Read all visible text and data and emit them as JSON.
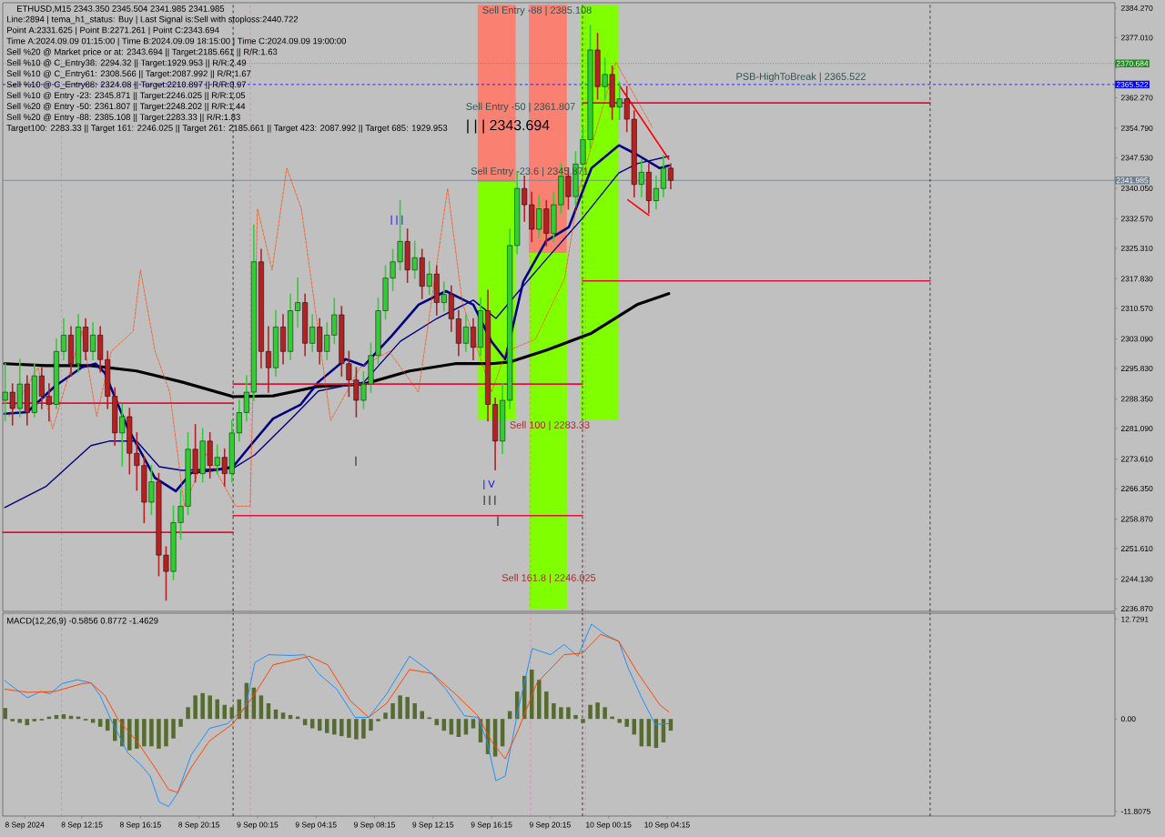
{
  "chart_data": [
    {
      "type": "candlestick",
      "title": "ETHUSD,M15  2343.350 2345.504 2341.985 2341.985",
      "annotations": [
        "Line:2894 | tema_h1_status: Buy | Last Signal is:Sell with stoploss:2440.722",
        "Point A:2331.625 | Point B:2271.261 | Point C:2343.694",
        "Time A:2024.09.09 01:15:00 | Time B:2024.09.09 18:15:00 | Time C:2024.09.09 19:00:00",
        "Sell %20 @ Market price or at: 2343.694 || Target:2185.661 || R/R:1.63",
        "Sell %10 @ C_Entry38: 2294.32 || Target:1929.953 || R/R:2.49",
        "Sell %10 @ C_Entry61: 2308.566 || Target:2087.992 || R/R:1.67",
        "Sell %10 @ C_Entry88: 2324.08 || Target:2210.897 || R/R:0.97",
        "Sell %10 @ Entry -23: 2345.871 || Target:2246.025 || R/R:1.05",
        "Sell %20 @ Entry -50: 2361.807 || Target:2248.202 || R/R:1.44",
        "Sell %20 @ Entry -88: 2385.108 || Target:2283.33 || R/R:1.83",
        "Target100: 2283.33 || Target 161: 2246.025 || Target 261: 2185.661 || Target 423: 2087.992 || Target 685: 1929.953",
        "Sell Entry -88 | 2385.108",
        "Sell Entry -50 | 2361.807",
        "| | | 2343.694",
        "Sell Entry -23.6 | 2345.871",
        "Sell 100 | 2283.33",
        "Sell 161.8 | 2246.025",
        "| | |",
        "| V",
        "| | |",
        "|",
        "|",
        "PSB-HighToBreak | 2365.522"
      ],
      "x": [
        "2024-09-08T07:00",
        "2024-09-08T07:30",
        "2024-09-08T08:00",
        "2024-09-08T08:30",
        "2024-09-08T09:00",
        "2024-09-08T09:30",
        "2024-09-08T10:00",
        "2024-09-08T10:30",
        "2024-09-08T11:00",
        "2024-09-08T11:30",
        "2024-09-08T12:00",
        "2024-09-08T12:30",
        "2024-09-08T13:00",
        "2024-09-08T13:30",
        "2024-09-08T14:00",
        "2024-09-08T14:30",
        "2024-09-08T15:00",
        "2024-09-08T15:30",
        "2024-09-08T16:00",
        "2024-09-08T16:30",
        "2024-09-08T17:00",
        "2024-09-08T17:30",
        "2024-09-08T18:00",
        "2024-09-08T18:30",
        "2024-09-08T19:00",
        "2024-09-08T19:30",
        "2024-09-08T20:00",
        "2024-09-08T20:30",
        "2024-09-08T21:00",
        "2024-09-08T21:30",
        "2024-09-08T22:00",
        "2024-09-08T22:30",
        "2024-09-08T23:00",
        "2024-09-08T23:30",
        "2024-09-09T00:00",
        "2024-09-09T00:30",
        "2024-09-09T01:00",
        "2024-09-09T01:30",
        "2024-09-09T02:00",
        "2024-09-09T02:30",
        "2024-09-09T03:00",
        "2024-09-09T03:30",
        "2024-09-09T04:00",
        "2024-09-09T04:30",
        "2024-09-09T05:00",
        "2024-09-09T05:30",
        "2024-09-09T06:00",
        "2024-09-09T06:30",
        "2024-09-09T07:00",
        "2024-09-09T07:30",
        "2024-09-09T08:00",
        "2024-09-09T08:30",
        "2024-09-09T09:00",
        "2024-09-09T09:30",
        "2024-09-09T10:00",
        "2024-09-09T10:30",
        "2024-09-09T11:00",
        "2024-09-09T11:30",
        "2024-09-09T12:00",
        "2024-09-09T12:30",
        "2024-09-09T13:00",
        "2024-09-09T13:30",
        "2024-09-09T14:00",
        "2024-09-09T14:30",
        "2024-09-09T15:00",
        "2024-09-09T15:30",
        "2024-09-09T16:00",
        "2024-09-09T16:30",
        "2024-09-09T17:00",
        "2024-09-09T17:30",
        "2024-09-09T18:00",
        "2024-09-09T18:30",
        "2024-09-09T19:00",
        "2024-09-09T19:30",
        "2024-09-09T20:00",
        "2024-09-09T20:30",
        "2024-09-09T21:00",
        "2024-09-09T21:30",
        "2024-09-09T22:00",
        "2024-09-09T22:30",
        "2024-09-09T23:00",
        "2024-09-09T23:30",
        "2024-09-10T00:00",
        "2024-09-10T00:30",
        "2024-09-10T01:00",
        "2024-09-10T01:30",
        "2024-09-10T02:00",
        "2024-09-10T02:30",
        "2024-09-10T03:00",
        "2024-09-10T03:30",
        "2024-09-10T04:00",
        "2024-09-10T04:30"
      ],
      "ohlc": [
        [
          2288,
          2297,
          2283,
          2290
        ],
        [
          2290,
          2292,
          2282,
          2286
        ],
        [
          2286,
          2298,
          2284,
          2292
        ],
        [
          2292,
          2294,
          2282,
          2285
        ],
        [
          2285,
          2297,
          2284,
          2294
        ],
        [
          2294,
          2296,
          2286,
          2289
        ],
        [
          2289,
          2292,
          2283,
          2287
        ],
        [
          2287,
          2303,
          2286,
          2300
        ],
        [
          2300,
          2308,
          2298,
          2304
        ],
        [
          2304,
          2306,
          2294,
          2297
        ],
        [
          2297,
          2309,
          2295,
          2306
        ],
        [
          2306,
          2308,
          2298,
          2300
        ],
        [
          2300,
          2307,
          2298,
          2304
        ],
        [
          2304,
          2306,
          2295,
          2298
        ],
        [
          2298,
          2300,
          2286,
          2289
        ],
        [
          2289,
          2291,
          2277,
          2280
        ],
        [
          2280,
          2287,
          2272,
          2284
        ],
        [
          2284,
          2286,
          2270,
          2275
        ],
        [
          2275,
          2280,
          2266,
          2272
        ],
        [
          2272,
          2274,
          2258,
          2263
        ],
        [
          2263,
          2272,
          2260,
          2268
        ],
        [
          2268,
          2270,
          2245,
          2250
        ],
        [
          2250,
          2252,
          2239,
          2246
        ],
        [
          2246,
          2262,
          2244,
          2258
        ],
        [
          2258,
          2266,
          2254,
          2262
        ],
        [
          2262,
          2280,
          2260,
          2276
        ],
        [
          2276,
          2282,
          2268,
          2270
        ],
        [
          2270,
          2281,
          2268,
          2278
        ],
        [
          2278,
          2280,
          2269,
          2272
        ],
        [
          2272,
          2277,
          2270,
          2274
        ],
        [
          2274,
          2276,
          2267,
          2270
        ],
        [
          2270,
          2283,
          2268,
          2280
        ],
        [
          2280,
          2288,
          2278,
          2285
        ],
        [
          2285,
          2294,
          2283,
          2290
        ],
        [
          2290,
          2331,
          2288,
          2322
        ],
        [
          2322,
          2325,
          2296,
          2300
        ],
        [
          2300,
          2306,
          2290,
          2296
        ],
        [
          2296,
          2310,
          2294,
          2306
        ],
        [
          2306,
          2309,
          2297,
          2300
        ],
        [
          2300,
          2314,
          2298,
          2310
        ],
        [
          2310,
          2318,
          2306,
          2312
        ],
        [
          2312,
          2314,
          2299,
          2302
        ],
        [
          2302,
          2309,
          2300,
          2306
        ],
        [
          2306,
          2308,
          2297,
          2300
        ],
        [
          2300,
          2307,
          2298,
          2304
        ],
        [
          2304,
          2313,
          2302,
          2309
        ],
        [
          2309,
          2311,
          2294,
          2297
        ],
        [
          2297,
          2300,
          2289,
          2293
        ],
        [
          2293,
          2296,
          2284,
          2288
        ],
        [
          2288,
          2295,
          2286,
          2292
        ],
        [
          2292,
          2302,
          2290,
          2299
        ],
        [
          2299,
          2313,
          2297,
          2310
        ],
        [
          2310,
          2321,
          2308,
          2318
        ],
        [
          2318,
          2325,
          2315,
          2322
        ],
        [
          2322,
          2337,
          2320,
          2327
        ],
        [
          2327,
          2330,
          2317,
          2320
        ],
        [
          2320,
          2327,
          2318,
          2323
        ],
        [
          2323,
          2325,
          2313,
          2316
        ],
        [
          2316,
          2322,
          2314,
          2319
        ],
        [
          2319,
          2321,
          2309,
          2312
        ],
        [
          2312,
          2317,
          2310,
          2314
        ],
        [
          2314,
          2316,
          2305,
          2308
        ],
        [
          2308,
          2310,
          2299,
          2302
        ],
        [
          2302,
          2309,
          2300,
          2306
        ],
        [
          2306,
          2308,
          2298,
          2301
        ],
        [
          2301,
          2313,
          2299,
          2310
        ],
        [
          2310,
          2315,
          2283,
          2287
        ],
        [
          2287,
          2288.5,
          2271,
          2278
        ],
        [
          2278,
          2292,
          2275,
          2288
        ],
        [
          2288,
          2330,
          2286,
          2326
        ],
        [
          2326,
          2344,
          2324,
          2340
        ],
        [
          2340,
          2343,
          2332,
          2336
        ],
        [
          2336,
          2339,
          2327,
          2330
        ],
        [
          2330,
          2338,
          2328,
          2335
        ],
        [
          2335,
          2337,
          2326,
          2329
        ],
        [
          2329,
          2339,
          2327,
          2336
        ],
        [
          2336,
          2346,
          2334,
          2343
        ],
        [
          2343,
          2345,
          2335,
          2338
        ],
        [
          2338,
          2349,
          2336,
          2346
        ],
        [
          2346,
          2355,
          2344,
          2352
        ],
        [
          2352,
          2380,
          2350,
          2374
        ],
        [
          2374,
          2378,
          2362,
          2365
        ],
        [
          2365,
          2372,
          2362,
          2368
        ],
        [
          2368,
          2370,
          2357,
          2360
        ],
        [
          2360,
          2366,
          2357,
          2362
        ],
        [
          2362,
          2365,
          2354,
          2357
        ],
        [
          2357,
          2359,
          2338,
          2341
        ],
        [
          2341,
          2347,
          2338,
          2344
        ],
        [
          2344,
          2346,
          2334,
          2337
        ],
        [
          2337,
          2343,
          2335,
          2340
        ],
        [
          2340,
          2348,
          2338,
          2345
        ],
        [
          2345,
          2346,
          2340,
          2341.985
        ]
      ],
      "series": [
        {
          "type": "bar",
          "color": "#7fff00",
          "x": [
            "2024-09-09T16:36",
            "2024-09-09T20:06",
            "2024-09-09T23:39"
          ],
          "base": [
            2283.1,
            2236.87,
            2283.1
          ],
          "values": [
            58.5,
            87.3,
            102.0
          ]
        },
        {
          "type": "bar",
          "color": "#fa8072",
          "x": [
            "2024-09-09T16:36",
            "2024-09-09T20:06"
          ],
          "base": [
            2341.6,
            2324.2
          ],
          "values": [
            43.5,
            60.9
          ]
        },
        {
          "type": "line",
          "color": "#000000",
          "x": [
            "2024-09-08T06:58",
            "2024-09-08T09:46",
            "2024-09-08T12:52",
            "2024-09-08T15:59",
            "2024-09-08T19:05",
            "2024-09-08T22:35",
            "2024-09-09T01:19",
            "2024-09-09T04:25",
            "2024-09-09T07:32",
            "2024-09-09T10:39",
            "2024-09-09T13:46",
            "2024-09-09T16:14",
            "2024-09-09T17:29",
            "2024-09-09T19:59",
            "2024-09-09T23:05",
            "2024-09-10T02:12",
            "2024-09-10T04:22"
          ],
          "values": [
            2297.0,
            2296.5,
            2296.5,
            2295.2,
            2292.5,
            2288.9,
            2289.1,
            2291.4,
            2292.0,
            2295.2,
            2297.0,
            2297.0,
            2297.4,
            2300.3,
            2304.5,
            2311.5,
            2314.2
          ]
        },
        {
          "type": "line",
          "color": "#000080",
          "x": [
            "2024-09-08T06:58",
            "2024-09-08T08:31",
            "2024-09-08T10:23",
            "2024-09-08T12:15",
            "2024-09-08T13:11",
            "2024-09-08T13:49",
            "2024-09-08T15:22",
            "2024-09-08T17:14",
            "2024-09-08T18:40",
            "2024-09-08T19:43",
            "2024-09-08T21:35",
            "2024-09-08T22:35",
            "2024-09-08T23:46",
            "2024-09-09T01:19",
            "2024-09-09T03:11",
            "2024-09-09T04:25",
            "2024-09-09T06:17",
            "2024-09-09T07:32",
            "2024-09-09T09:24",
            "2024-09-09T11:16",
            "2024-09-09T13:08",
            "2024-09-09T15:00",
            "2024-09-09T16:14",
            "2024-09-09T17:11",
            "2024-09-09T18:25",
            "2024-09-09T19:59",
            "2024-09-09T21:32",
            "2024-09-09T23:05",
            "2024-09-10T00:57",
            "2024-09-10T02:12",
            "2024-09-10T03:45",
            "2024-09-10T04:22"
          ],
          "values": [
            2284.7,
            2285.1,
            2291.4,
            2296.1,
            2297.0,
            2294.7,
            2281.3,
            2269.0,
            2265.7,
            2270.2,
            2271.0,
            2271.7,
            2276.9,
            2283.5,
            2286.9,
            2292.5,
            2298.1,
            2296.5,
            2303.7,
            2311.5,
            2314.8,
            2311.5,
            2302.5,
            2298.1,
            2317.1,
            2327.1,
            2330.5,
            2345.0,
            2350.6,
            2348.3,
            2345.0,
            2345.6
          ]
        },
        {
          "type": "line",
          "color": "#000080",
          "x": [
            "2024-09-08T06:58",
            "2024-09-08T09:46",
            "2024-09-08T12:52",
            "2024-09-08T14:07",
            "2024-09-08T15:59",
            "2024-09-08T17:32",
            "2024-09-08T19:05",
            "2024-09-08T22:35",
            "2024-09-09T00:04",
            "2024-09-09T02:34",
            "2024-09-09T04:25",
            "2024-09-09T07:32",
            "2024-09-09T10:01",
            "2024-09-09T12:31",
            "2024-09-09T15:00",
            "2024-09-09T16:33",
            "2024-09-09T18:07",
            "2024-09-09T19:59",
            "2024-09-09T22:28",
            "2024-09-10T00:57",
            "2024-09-10T02:12",
            "2024-09-10T04:22"
          ],
          "values": [
            2261.7,
            2266.8,
            2276.9,
            2278.0,
            2278.0,
            2271.7,
            2270.8,
            2271.3,
            2274.6,
            2283.5,
            2290.3,
            2292.5,
            2302.5,
            2308.1,
            2312.6,
            2308.1,
            2314.8,
            2322.6,
            2332.7,
            2343.8,
            2346.1,
            2347.9
          ]
        },
        {
          "type": "line",
          "color": "#ff4500",
          "line_style": "dashed",
          "x": [
            "2024-09-08T07:15",
            "2024-09-08T09:15",
            "2024-09-08T10:15",
            "2024-09-08T12:15",
            "2024-09-08T13:15",
            "2024-09-08T14:15",
            "2024-09-08T15:45",
            "2024-09-08T16:15",
            "2024-09-08T17:15",
            "2024-09-08T18:15",
            "2024-09-08T19:15",
            "2024-09-08T20:45",
            "2024-09-08T22:45",
            "2024-09-08T23:45",
            "2024-09-09T00:15",
            "2024-09-09T01:15",
            "2024-09-09T02:15",
            "2024-09-09T03:15",
            "2024-09-09T05:15",
            "2024-09-09T07:15",
            "2024-09-09T09:15",
            "2024-09-09T11:15",
            "2024-09-09T13:15",
            "2024-09-09T14:15",
            "2024-09-09T16:15",
            "2024-09-09T17:15",
            "2024-09-09T19:15",
            "2024-09-09T20:15",
            "2024-09-09T21:15",
            "2024-09-09T22:15",
            "2024-09-10T00:45",
            "2024-09-10T03:15"
          ],
          "values": [
            2284,
            2296,
            2281,
            2305,
            2284,
            2300,
            2305,
            2320,
            2300,
            2290,
            2262,
            2275,
            2262,
            2262,
            2335,
            2320,
            2345,
            2335,
            2283,
            2296,
            2300,
            2290,
            2340,
            2312,
            2290,
            2300,
            2303,
            null,
            2318,
            2340,
            2371,
            2355
          ]
        },
        {
          "type": "line",
          "color": "#dc143c",
          "x": [
            "2024-09-08T06:50",
            "2024-09-08T22:35"
          ],
          "values": [
            2287.3,
            2287.3
          ]
        },
        {
          "type": "line",
          "color": "#dc143c",
          "x": [
            "2024-09-08T06:50",
            "2024-09-08T22:35"
          ],
          "values": [
            2255.6,
            2255.6
          ]
        },
        {
          "type": "line",
          "color": "#dc143c",
          "x": [
            "2024-09-08T22:35",
            "2024-09-09T22:28"
          ],
          "values": [
            2292.0,
            2292.0
          ]
        },
        {
          "type": "line",
          "color": "#dc143c",
          "x": [
            "2024-09-08T22:35",
            "2024-09-09T22:28"
          ],
          "values": [
            2259.7,
            2259.7
          ]
        },
        {
          "type": "line",
          "color": "#dc143c",
          "x": [
            "2024-09-09T22:28",
            "2024-09-10T22:14"
          ],
          "values": [
            2361.0,
            2361.0
          ]
        },
        {
          "type": "line",
          "color": "#dc143c",
          "x": [
            "2024-09-09T22:28",
            "2024-09-10T22:14"
          ],
          "values": [
            2317.3,
            2317.3
          ]
        },
        {
          "type": "line",
          "color": "#ff0000",
          "x": [
            "2024-09-10T00:57",
            "2024-09-10T04:22"
          ],
          "values": [
            2365.5,
            2347.2
          ]
        },
        {
          "type": "line",
          "color": "#ff0000",
          "x": [
            "2024-09-10T01:34",
            "2024-09-10T03:00"
          ],
          "values": [
            2337.2,
            2333.4
          ]
        }
      ],
      "ref_lines": [
        {
          "axis": "y",
          "value": 2370.684,
          "label": "2370.684",
          "color": "#228b22",
          "line_style": "dotted"
        },
        {
          "axis": "y",
          "value": 2365.522,
          "label": "2365.522",
          "color": "#0000ff",
          "line_style": "dashed"
        },
        {
          "axis": "y",
          "value": 2341.985,
          "label": "2341.985",
          "color": "#708090",
          "line_style": "solid"
        },
        {
          "axis": "x",
          "value": "2024-09-08T22:35",
          "color": "#000000",
          "line_style": "dashed"
        },
        {
          "axis": "x",
          "value": "2024-09-09T22:28",
          "color": "#000000",
          "line_style": "dashed"
        },
        {
          "axis": "x",
          "value": "2024-09-10T22:14",
          "color": "#000000",
          "line_style": "dashed"
        },
        {
          "axis": "x",
          "value": "2024-09-08T10:51",
          "color": "#ff69b4",
          "line_style": "dashed"
        },
        {
          "axis": "x",
          "value": "2024-09-08T23:46",
          "color": "#ff69b4",
          "line_style": "dashed"
        },
        {
          "axis": "x",
          "value": "2024-09-09T18:55",
          "color": "#ff69b4",
          "line_style": "dashed"
        },
        {
          "axis": "x",
          "value": "2024-09-09T22:40",
          "color": "#ff69b4",
          "line_style": "dashed"
        }
      ],
      "xlim": [
        "2024-09-08T06:50",
        "2024-09-11T10:52"
      ],
      "ylim": [
        2236.2,
        2385.6
      ],
      "yticks": [
        {
          "value": 2384.27,
          "label": "2384.270"
        },
        {
          "value": 2377.01,
          "label": "2377.010"
        },
        {
          "value": 2369.53,
          "label": null
        },
        {
          "value": 2362.27,
          "label": "2362.270"
        },
        {
          "value": 2354.79,
          "label": "2354.790"
        },
        {
          "value": 2347.53,
          "label": "2347.530"
        },
        {
          "value": 2340.05,
          "label": "2340.050"
        },
        {
          "value": 2332.57,
          "label": "2332.570"
        },
        {
          "value": 2325.31,
          "label": "2325.310"
        },
        {
          "value": 2317.83,
          "label": "2317.830"
        },
        {
          "value": 2310.57,
          "label": "2310.570"
        },
        {
          "value": 2303.09,
          "label": "2303.090"
        },
        {
          "value": 2295.83,
          "label": "2295.830"
        },
        {
          "value": 2288.35,
          "label": "2288.350"
        },
        {
          "value": 2281.09,
          "label": "2281.090"
        },
        {
          "value": 2273.61,
          "label": "2273.610"
        },
        {
          "value": 2266.35,
          "label": "2266.350"
        },
        {
          "value": 2258.87,
          "label": "2258.870"
        },
        {
          "value": 2251.61,
          "label": "2251.610"
        },
        {
          "value": 2244.13,
          "label": "2244.130"
        },
        {
          "value": 2236.87,
          "label": "2236.870"
        }
      ],
      "tick_labels": "y"
    },
    {
      "type": "bar",
      "title": "MACD(12,26,9) -0.5856 0.8772 -1.4629",
      "x": [
        "2024-09-08T07:00",
        "2024-09-08T07:30",
        "2024-09-08T08:00",
        "2024-09-08T08:30",
        "2024-09-08T09:00",
        "2024-09-08T09:30",
        "2024-09-08T10:00",
        "2024-09-08T10:30",
        "2024-09-08T11:00",
        "2024-09-08T11:30",
        "2024-09-08T12:00",
        "2024-09-08T12:30",
        "2024-09-08T13:00",
        "2024-09-08T13:30",
        "2024-09-08T14:00",
        "2024-09-08T14:30",
        "2024-09-08T15:00",
        "2024-09-08T15:30",
        "2024-09-08T16:00",
        "2024-09-08T16:30",
        "2024-09-08T17:00",
        "2024-09-08T17:30",
        "2024-09-08T18:00",
        "2024-09-08T18:30",
        "2024-09-08T19:00",
        "2024-09-08T19:30",
        "2024-09-08T20:00",
        "2024-09-08T20:30",
        "2024-09-08T21:00",
        "2024-09-08T21:30",
        "2024-09-08T22:00",
        "2024-09-08T22:30",
        "2024-09-08T23:00",
        "2024-09-08T23:30",
        "2024-09-09T00:00",
        "2024-09-09T00:30",
        "2024-09-09T01:00",
        "2024-09-09T01:30",
        "2024-09-09T02:00",
        "2024-09-09T02:30",
        "2024-09-09T03:00",
        "2024-09-09T03:30",
        "2024-09-09T04:00",
        "2024-09-09T04:30",
        "2024-09-09T05:00",
        "2024-09-09T05:30",
        "2024-09-09T06:00",
        "2024-09-09T06:30",
        "2024-09-09T07:00",
        "2024-09-09T07:30",
        "2024-09-09T08:00",
        "2024-09-09T08:30",
        "2024-09-09T09:00",
        "2024-09-09T09:30",
        "2024-09-09T10:00",
        "2024-09-09T10:30",
        "2024-09-09T11:00",
        "2024-09-09T11:30",
        "2024-09-09T12:00",
        "2024-09-09T12:30",
        "2024-09-09T13:00",
        "2024-09-09T13:30",
        "2024-09-09T14:00",
        "2024-09-09T14:30",
        "2024-09-09T15:00",
        "2024-09-09T15:30",
        "2024-09-09T16:00",
        "2024-09-09T16:30",
        "2024-09-09T17:00",
        "2024-09-09T17:30",
        "2024-09-09T18:00",
        "2024-09-09T18:30",
        "2024-09-09T19:00",
        "2024-09-09T19:30",
        "2024-09-09T20:00",
        "2024-09-09T20:30",
        "2024-09-09T21:00",
        "2024-09-09T21:30",
        "2024-09-09T22:00",
        "2024-09-09T22:30",
        "2024-09-09T23:00",
        "2024-09-09T23:30",
        "2024-09-10T00:00",
        "2024-09-10T00:30",
        "2024-09-10T01:00",
        "2024-09-10T01:30",
        "2024-09-10T02:00",
        "2024-09-10T02:30",
        "2024-09-10T03:00",
        "2024-09-10T03:30",
        "2024-09-10T04:00",
        "2024-09-10T04:30"
      ],
      "series": [
        {
          "type": "bar",
          "color": "#556b2f",
          "values": [
            1.4,
            -0.3,
            -0.5,
            -0.8,
            -0.3,
            -0.2,
            0.3,
            0.5,
            0.6,
            0.4,
            0.3,
            -0.2,
            -0.5,
            -1.0,
            -1.5,
            -2.8,
            -3.5,
            -4.0,
            -3.8,
            -3.5,
            -3.5,
            -3.8,
            -3.5,
            -2.5,
            -1.0,
            1.5,
            3.0,
            3.3,
            3.0,
            2.5,
            1.8,
            1.5,
            2.5,
            4.6,
            4.0,
            3.0,
            2.0,
            1.2,
            0.8,
            0.5,
            0.3,
            -0.8,
            -1.2,
            -1.5,
            -1.8,
            -2.0,
            -2.2,
            -2.4,
            -2.6,
            -2.5,
            -1.5,
            -0.3,
            0.8,
            2.0,
            3.0,
            2.8,
            2.0,
            1.0,
            0.2,
            -0.8,
            -1.5,
            -2.0,
            -2.3,
            -2.0,
            -1.2,
            -3.0,
            -4.5,
            -4.8,
            -3.5,
            1.0,
            3.5,
            5.5,
            6.3,
            5.0,
            3.5,
            2.0,
            1.5,
            1.5,
            0.5,
            -0.5,
            1.8,
            2.1,
            1.5,
            0.3,
            -0.5,
            -1.0,
            -2.0,
            -3.5,
            -3.5,
            -3.7,
            -3.0,
            -1.5
          ]
        },
        {
          "type": "line",
          "color": "#1e90ff",
          "x": [
            "2024-09-08T06:58",
            "2024-09-08T08:31",
            "2024-09-08T09:27",
            "2024-09-08T10:04",
            "2024-09-08T10:53",
            "2024-09-08T11:56",
            "2024-09-08T12:52",
            "2024-09-08T13:29",
            "2024-09-08T14:14",
            "2024-09-08T15:22",
            "2024-09-08T16:17",
            "2024-09-08T16:55",
            "2024-09-08T17:32",
            "2024-09-08T18:10",
            "2024-09-08T18:47",
            "2024-09-08T19:43",
            "2024-09-08T20:58",
            "2024-09-08T22:12",
            "2024-09-08T23:27",
            "2024-09-09T00:04",
            "2024-09-09T01:00",
            "2024-09-09T02:34",
            "2024-09-09T03:29",
            "2024-09-09T04:25",
            "2024-09-09T05:40",
            "2024-09-09T06:55",
            "2024-09-09T07:51",
            "2024-09-09T09:05",
            "2024-09-09T10:39",
            "2024-09-09T11:53",
            "2024-09-09T13:08",
            "2024-09-09T14:23",
            "2024-09-09T15:19",
            "2024-09-09T15:56",
            "2024-09-09T16:33",
            "2024-09-09T17:11",
            "2024-09-09T18:07",
            "2024-09-09T19:02",
            "2024-09-09T20:17",
            "2024-09-09T21:13",
            "2024-09-09T22:09",
            "2024-09-09T23:05",
            "2024-09-10T00:01",
            "2024-09-10T00:57",
            "2024-09-10T01:34",
            "2024-09-10T02:31",
            "2024-09-10T03:26",
            "2024-09-10T04:22"
          ],
          "values": [
            4.9,
            2.7,
            3.5,
            3.2,
            4.5,
            5.0,
            4.6,
            3.0,
            -0.1,
            -4.3,
            -5.9,
            -7.3,
            -10.6,
            -11.2,
            -9.5,
            -4.6,
            -1.2,
            -0.6,
            1.6,
            7.2,
            8.2,
            8.1,
            8.2,
            5.8,
            3.8,
            0.2,
            0.2,
            3.2,
            8.0,
            6.3,
            3.8,
            0.4,
            0.2,
            -2.8,
            -7.9,
            -7.3,
            1.6,
            9.0,
            8.2,
            9.5,
            8.0,
            12.1,
            10.8,
            9.9,
            6.6,
            2.7,
            -0.7,
            -0.6
          ]
        },
        {
          "type": "line",
          "color": "#ff4500",
          "x": [
            "2024-09-08T06:58",
            "2024-09-08T08:31",
            "2024-09-08T10:23",
            "2024-09-08T12:15",
            "2024-09-08T12:52",
            "2024-09-08T13:49",
            "2024-09-08T14:44",
            "2024-09-08T15:59",
            "2024-09-08T17:14",
            "2024-09-08T18:10",
            "2024-09-08T18:47",
            "2024-09-08T19:43",
            "2024-09-08T20:58",
            "2024-09-08T22:35",
            "2024-09-09T00:04",
            "2024-09-09T01:19",
            "2024-09-09T03:48",
            "2024-09-09T05:03",
            "2024-09-09T06:36",
            "2024-09-09T07:51",
            "2024-09-09T09:05",
            "2024-09-09T10:39",
            "2024-09-09T12:12",
            "2024-09-09T13:46",
            "2024-09-09T15:19",
            "2024-09-09T16:14",
            "2024-09-09T17:11",
            "2024-09-09T18:07",
            "2024-09-09T19:21",
            "2024-09-09T21:13",
            "2024-09-09T22:28",
            "2024-09-09T23:43",
            "2024-09-10T00:57",
            "2024-09-10T02:12",
            "2024-09-10T03:45",
            "2024-09-10T04:22"
          ],
          "values": [
            3.8,
            3.4,
            3.5,
            4.5,
            4.6,
            3.0,
            -0.1,
            -2.8,
            -6.2,
            -9.0,
            -9.4,
            -6.2,
            -2.8,
            -0.6,
            3.2,
            6.9,
            8.0,
            6.9,
            2.3,
            0.2,
            2.0,
            6.3,
            5.8,
            3.2,
            0.4,
            -2.8,
            -5.1,
            -1.2,
            4.6,
            8.2,
            8.4,
            10.8,
            9.9,
            6.0,
            1.8,
            0.9
          ]
        }
      ],
      "ref_lines": [
        {
          "axis": "x",
          "value": "2024-09-08T22:35",
          "color": "#000000",
          "line_style": "dashed"
        },
        {
          "axis": "x",
          "value": "2024-09-09T22:28",
          "color": "#000000",
          "line_style": "dashed"
        },
        {
          "axis": "x",
          "value": "2024-09-10T22:14",
          "color": "#000000",
          "line_style": "dashed"
        },
        {
          "axis": "x",
          "value": "2024-09-08T10:51",
          "color": "#ff69b4",
          "line_style": "dashed"
        },
        {
          "axis": "x",
          "value": "2024-09-08T23:46",
          "color": "#ff69b4",
          "line_style": "dashed"
        },
        {
          "axis": "x",
          "value": "2024-09-09T18:55",
          "color": "#ff69b4",
          "line_style": "dashed"
        },
        {
          "axis": "x",
          "value": "2024-09-09T22:40",
          "color": "#ff69b4",
          "line_style": "dashed"
        }
      ],
      "xlim": [
        "2024-09-08T06:50",
        "2024-09-11T10:52"
      ],
      "ylim": [
        -12.4,
        13.5
      ],
      "yticks": [
        {
          "value": 12.7291,
          "label": "12.7291"
        },
        {
          "value": 0,
          "label": "0.00"
        },
        {
          "value": -11.8075,
          "label": "-11.8075"
        }
      ],
      "xticks": [
        {
          "value": "2024-09-08T08:20",
          "label": "8 Sep 2024"
        },
        {
          "value": "2024-09-08T12:15",
          "label": "8 Sep 12:15"
        },
        {
          "value": "2024-09-08T16:15",
          "label": "8 Sep 16:15"
        },
        {
          "value": "2024-09-08T20:15",
          "label": "8 Sep 20:15"
        },
        {
          "value": "2024-09-09T00:15",
          "label": "9 Sep 00:15"
        },
        {
          "value": "2024-09-09T04:15",
          "label": "9 Sep 04:15"
        },
        {
          "value": "2024-09-09T08:15",
          "label": "9 Sep 08:15"
        },
        {
          "value": "2024-09-09T12:15",
          "label": "9 Sep 12:15"
        },
        {
          "value": "2024-09-09T16:15",
          "label": "9 Sep 16:15"
        },
        {
          "value": "2024-09-09T20:15",
          "label": "9 Sep 20:15"
        },
        {
          "value": "2024-09-10T00:15",
          "label": "10 Sep 00:15"
        },
        {
          "value": "2024-09-10T04:15",
          "label": "10 Sep 04:15"
        }
      ]
    }
  ]
}
